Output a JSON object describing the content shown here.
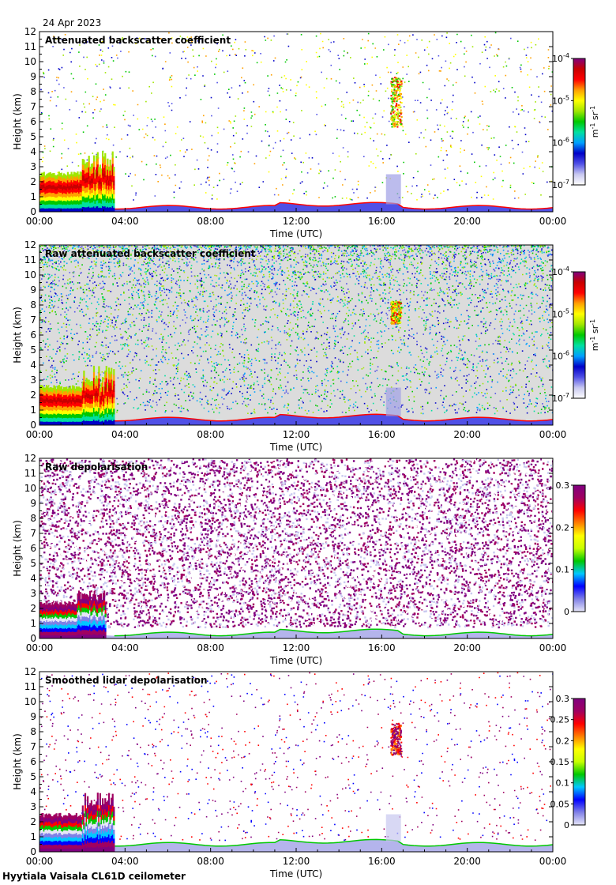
{
  "date": "24 Apr 2023",
  "footer": "Hyytiala Vaisala CL61D ceilometer",
  "chart_data": [
    {
      "type": "heatmap",
      "title": "Attenuated backscatter coefficient",
      "xlabel": "Time (UTC)",
      "ylabel": "Height (km)",
      "x_ticks": [
        "00:00",
        "04:00",
        "08:00",
        "12:00",
        "16:00",
        "20:00",
        "00:00"
      ],
      "xlim_hours": [
        0,
        24
      ],
      "ylim": [
        0,
        12
      ],
      "y_ticks": [
        "0",
        "1",
        "2",
        "3",
        "4",
        "5",
        "6",
        "7",
        "8",
        "9",
        "10",
        "11",
        "12"
      ],
      "colorbar": {
        "scale": "log",
        "range": [
          1e-07,
          0.0001
        ],
        "unit": "m-1 sr-1",
        "ticks": [
          {
            "base": "10",
            "exp": "-4"
          },
          {
            "base": "10",
            "exp": "-5"
          },
          {
            "base": "10",
            "exp": "-6"
          },
          {
            "base": "10",
            "exp": "-7"
          }
        ]
      },
      "features": {
        "surface_layer_top_km": 0.3,
        "early_cloud": {
          "start_h": 0,
          "end_h": 3.5,
          "top_km": 2.4,
          "peaks_km": [
            3.8,
            4.1
          ]
        },
        "mid_cloud": {
          "start_h": 16.4,
          "end_h": 16.9,
          "bottom_km": 5.7,
          "top_km": 9.0
        },
        "noise_density": "sparse"
      }
    },
    {
      "type": "heatmap",
      "title": "Raw attenuated backscatter coefficient",
      "xlabel": "Time (UTC)",
      "ylabel": "Height (km)",
      "x_ticks": [
        "00:00",
        "04:00",
        "08:00",
        "12:00",
        "16:00",
        "20:00",
        "00:00"
      ],
      "xlim_hours": [
        0,
        24
      ],
      "ylim": [
        0,
        12
      ],
      "y_ticks": [
        "0",
        "1",
        "2",
        "3",
        "4",
        "5",
        "6",
        "7",
        "8",
        "9",
        "10",
        "11",
        "12"
      ],
      "colorbar": {
        "scale": "log",
        "range": [
          1e-07,
          0.0001
        ],
        "unit": "m-1 sr-1",
        "ticks": [
          {
            "base": "10",
            "exp": "-4"
          },
          {
            "base": "10",
            "exp": "-5"
          },
          {
            "base": "10",
            "exp": "-6"
          },
          {
            "base": "10",
            "exp": "-7"
          }
        ]
      },
      "features": {
        "surface_layer_top_km": 0.4,
        "early_cloud": {
          "start_h": 0,
          "end_h": 3.5,
          "top_km": 2.4,
          "peaks_km": [
            3.5,
            4.0
          ]
        },
        "mid_cloud": {
          "start_h": 16.4,
          "end_h": 16.9,
          "bottom_km": 6.8,
          "top_km": 8.3
        },
        "noise_density": "dense"
      }
    },
    {
      "type": "heatmap",
      "title": "Raw depolarisation",
      "xlabel": "Time (UTC)",
      "ylabel": "Height (km)",
      "x_ticks": [
        "00:00",
        "04:00",
        "08:00",
        "12:00",
        "16:00",
        "20:00",
        "00:00"
      ],
      "xlim_hours": [
        0,
        24
      ],
      "ylim": [
        0,
        12
      ],
      "y_ticks": [
        "0",
        "1",
        "2",
        "3",
        "4",
        "5",
        "6",
        "7",
        "8",
        "9",
        "10",
        "11",
        "12"
      ],
      "colorbar": {
        "scale": "linear",
        "range": [
          0,
          0.3
        ],
        "ticks": [
          "0.3",
          "0.2",
          "0.1",
          "0"
        ]
      },
      "features": {
        "surface_layer_top_km": 0.3,
        "early_cloud": {
          "start_h": 0,
          "end_h": 3.1,
          "top_km": 2.2,
          "peaks_km": [
            3.2
          ]
        },
        "noise_density": "saturated"
      }
    },
    {
      "type": "heatmap",
      "title": "Smoothed lidar depolarisation",
      "xlabel": "Time (UTC)",
      "ylabel": "Height (km)",
      "x_ticks": [
        "00:00",
        "04:00",
        "08:00",
        "12:00",
        "16:00",
        "20:00",
        "00:00"
      ],
      "xlim_hours": [
        0,
        24
      ],
      "ylim": [
        0,
        12
      ],
      "y_ticks": [
        "0",
        "1",
        "2",
        "3",
        "4",
        "5",
        "6",
        "7",
        "8",
        "9",
        "10",
        "11",
        "12"
      ],
      "colorbar": {
        "scale": "linear",
        "range": [
          0,
          0.3
        ],
        "ticks": [
          "0.3",
          "0.25",
          "0.2",
          "0.15",
          "0.1",
          "0.05",
          "0"
        ]
      },
      "features": {
        "surface_layer_top_km": 0.5,
        "early_cloud": {
          "start_h": 0,
          "end_h": 3.5,
          "top_km": 2.3,
          "peaks_km": [
            3.6,
            4.1
          ]
        },
        "mid_cloud": {
          "start_h": 16.4,
          "end_h": 16.9,
          "bottom_km": 6.5,
          "top_km": 8.6
        },
        "noise_density": "sparse"
      }
    }
  ]
}
